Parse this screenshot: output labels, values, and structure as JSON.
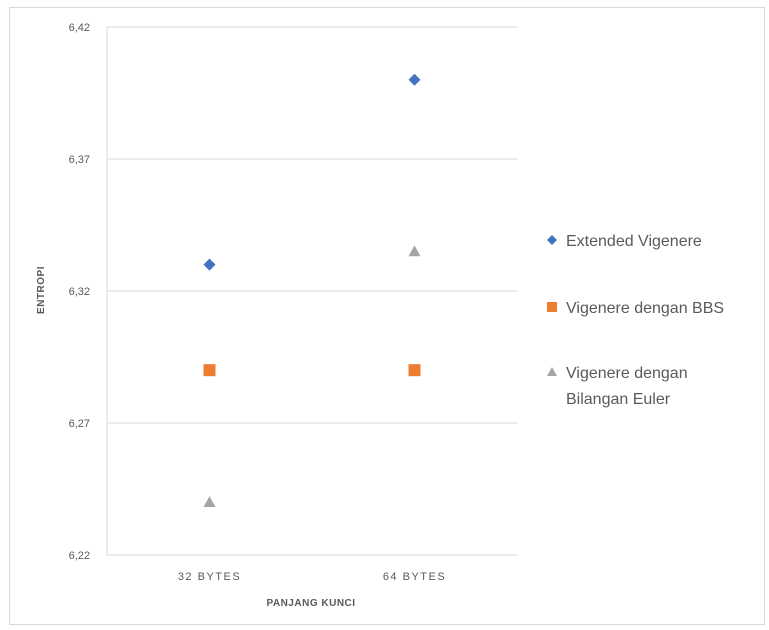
{
  "chart_data": {
    "type": "scatter",
    "categories": [
      "32 BYTES",
      "64 BYTES"
    ],
    "xlabel": "PANJANG KUNCI",
    "ylabel": "ENTROPI",
    "ylim": [
      6.22,
      6.42
    ],
    "yticks": [
      "6,22",
      "6,27",
      "6,32",
      "6,37",
      "6,42"
    ],
    "grid": true,
    "legend_position": "right",
    "series": [
      {
        "name": "Extended Vigenere",
        "marker": "diamond",
        "color": "#4472C4",
        "values": [
          6.33,
          6.4
        ]
      },
      {
        "name": "Vigenere dengan BBS",
        "marker": "square",
        "color": "#ED7D31",
        "values": [
          6.29,
          6.29
        ]
      },
      {
        "name": "Vigenere dengan Bilangan Euler",
        "marker": "triangle",
        "color": "#A5A5A5",
        "values": [
          6.24,
          6.335
        ],
        "legend_lines": [
          "Vigenere dengan",
          "Bilangan Euler"
        ]
      }
    ]
  }
}
